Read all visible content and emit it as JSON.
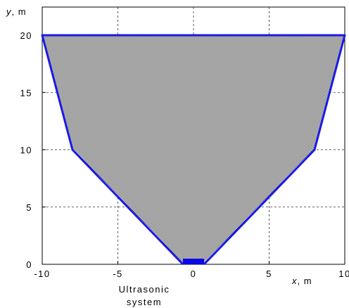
{
  "chart_data": {
    "type": "area",
    "xlabel": {
      "var": "x",
      "unit": ", m"
    },
    "ylabel": {
      "var": "y",
      "unit": ", m"
    },
    "xlim": [
      -10,
      10
    ],
    "ylim": [
      0,
      20
    ],
    "x_ticks": [
      -10,
      -5,
      0,
      5,
      10
    ],
    "y_ticks": [
      0,
      5,
      10,
      15,
      20
    ],
    "x_tick_labels": [
      "-10",
      "-5",
      "0",
      "5",
      "10"
    ],
    "y_tick_labels": [
      "0",
      "5",
      "10",
      "15",
      "20"
    ],
    "grid": true,
    "region": {
      "outline_color": "#1a1ae6",
      "fill_pattern": "checkered",
      "fill_colors": [
        "#4a4a4a",
        "#ffffff"
      ],
      "points": [
        {
          "x": -0.7,
          "y": 0
        },
        {
          "x": -8,
          "y": 10
        },
        {
          "x": -10,
          "y": 20
        },
        {
          "x": 10,
          "y": 20
        },
        {
          "x": 8,
          "y": 10
        },
        {
          "x": 0.7,
          "y": 0
        }
      ]
    },
    "sensor": {
      "color": "#0a0ae6",
      "x_range": [
        -0.7,
        0.7
      ],
      "label_lines": [
        "Ultrasonic",
        "system"
      ]
    }
  }
}
